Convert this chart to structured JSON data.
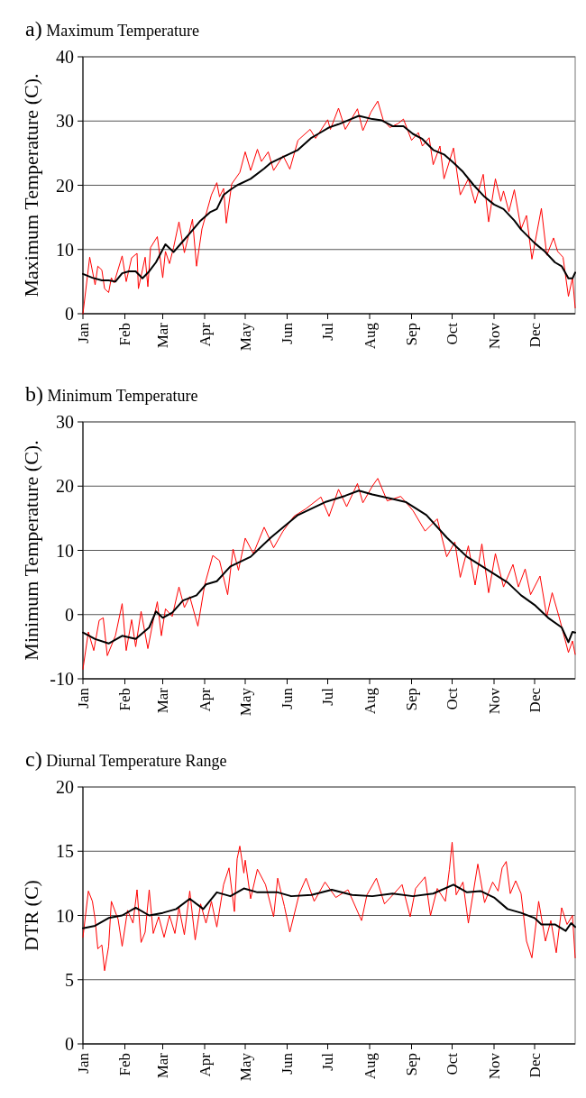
{
  "chart_data": [
    {
      "type": "line",
      "title": "a) Maximum Temperature",
      "ylabel": "Maximum Temperature (C).",
      "xlim": [
        "--01-01",
        "--12-31"
      ],
      "ylim": [
        0,
        40
      ],
      "yticks": [
        0,
        10,
        20,
        30,
        40
      ],
      "grid": "y",
      "marker": "none",
      "line_style": "solid",
      "xticks": [
        {
          "value": "--01-01",
          "label": "Jan"
        },
        {
          "value": "--02-01",
          "label": "Feb"
        },
        {
          "value": "--03-01",
          "label": "Mar"
        },
        {
          "value": "--04-01",
          "label": "Apr"
        },
        {
          "value": "--05-01",
          "label": "May"
        },
        {
          "value": "--06-01",
          "label": "Jun"
        },
        {
          "value": "--07-01",
          "label": "Jul"
        },
        {
          "value": "--08-01",
          "label": "Aug"
        },
        {
          "value": "--09-01",
          "label": "Sep"
        },
        {
          "value": "--10-01",
          "label": "Oct"
        },
        {
          "value": "--11-01",
          "label": "Nov"
        },
        {
          "value": "--12-01",
          "label": "Dec"
        }
      ],
      "series": [
        {
          "color": "#ff0000",
          "x": [
            "--01-01",
            "--01-06",
            "--01-10",
            "--01-12",
            "--01-15",
            "--01-17",
            "--01-20",
            "--01-22",
            "--01-24",
            "--01-30",
            "--02-02",
            "--02-06",
            "--02-10",
            "--02-11",
            "--02-16",
            "--02-18",
            "--02-20",
            "--02-25",
            "--03-01",
            "--03-03",
            "--03-06",
            "--03-09",
            "--03-13",
            "--03-17",
            "--03-23",
            "--03-26",
            "--03-30",
            "--04-06",
            "--04-10",
            "--04-12",
            "--04-15",
            "--04-17",
            "--04-21",
            "--04-27",
            "--05-01",
            "--05-05",
            "--05-10",
            "--05-13",
            "--05-18",
            "--05-22",
            "--05-29",
            "--06-03",
            "--06-09",
            "--06-18",
            "--06-22",
            "--07-01",
            "--07-03",
            "--07-09",
            "--07-14",
            "--07-23",
            "--07-27",
            "--08-02",
            "--08-07",
            "--08-11",
            "--08-16",
            "--08-22",
            "--08-26",
            "--09-01",
            "--09-06",
            "--09-09",
            "--09-14",
            "--09-17",
            "--09-22",
            "--09-25",
            "--10-02",
            "--10-07",
            "--10-13",
            "--10-18",
            "--10-24",
            "--10-28",
            "--11-02",
            "--11-06",
            "--11-08",
            "--11-12",
            "--11-16",
            "--11-21",
            "--11-25",
            "--11-29",
            "--12-06",
            "--12-10",
            "--12-15",
            "--12-18",
            "--12-22",
            "--12-26",
            "--12-29",
            "--12-31"
          ],
          "values": [
            0,
            8.8,
            4.5,
            7.4,
            6.8,
            3.9,
            3.3,
            5.6,
            4.8,
            9,
            5,
            8.7,
            9.4,
            3.9,
            8.8,
            4.2,
            10.3,
            12,
            5.6,
            9.7,
            7.8,
            10.3,
            14.3,
            9.5,
            14.7,
            7.4,
            13.2,
            18.5,
            20.4,
            18.2,
            19.5,
            14.1,
            20.2,
            22,
            25.2,
            22.3,
            25.6,
            23.7,
            25.2,
            22.3,
            24.6,
            22.5,
            27,
            28.7,
            27.3,
            30.2,
            28.7,
            32,
            28.7,
            31.9,
            28.5,
            31.4,
            33.1,
            30.2,
            29,
            29.6,
            30.3,
            27,
            28.2,
            26.1,
            27.4,
            23.2,
            26.1,
            21,
            25.8,
            18.5,
            21,
            17.2,
            21.7,
            14.3,
            21,
            17.5,
            19.1,
            15.9,
            19.3,
            13.2,
            15.3,
            8.5,
            16.4,
            9.1,
            11.8,
            9.7,
            8.8,
            2.7,
            5.6,
            0.9
          ]
        },
        {
          "color": "#000000",
          "x": [
            "--01-01",
            "--01-08",
            "--01-15",
            "--01-20",
            "--01-25",
            "--01-30",
            "--02-04",
            "--02-09",
            "--02-14",
            "--02-19",
            "--02-24",
            "--03-03",
            "--03-09",
            "--03-16",
            "--03-21",
            "--03-29",
            "--04-05",
            "--04-10",
            "--04-15",
            "--04-20",
            "--04-25",
            "--05-05",
            "--05-15",
            "--05-20",
            "--05-30",
            "--06-09",
            "--06-19",
            "--06-24",
            "--07-02",
            "--07-09",
            "--07-17",
            "--07-24",
            "--08-03",
            "--08-10",
            "--08-18",
            "--08-26",
            "--09-02",
            "--09-09",
            "--09-17",
            "--09-25",
            "--10-02",
            "--10-09",
            "--10-17",
            "--10-25",
            "--11-01",
            "--11-08",
            "--11-16",
            "--11-21",
            "--12-01",
            "--12-08",
            "--12-16",
            "--12-21",
            "--12-26",
            "--12-29",
            "--12-31"
          ],
          "values": [
            6.2,
            5.6,
            5.2,
            5.2,
            5,
            6.3,
            6.6,
            6.6,
            5.5,
            6.6,
            8,
            10.8,
            9.6,
            11.3,
            12.5,
            14.5,
            15.8,
            16.3,
            18.5,
            19.3,
            20,
            21,
            22.6,
            23.5,
            24.5,
            25.5,
            27.4,
            28,
            29,
            29.5,
            30.2,
            30.8,
            30.3,
            30.1,
            29.2,
            29.2,
            28,
            27.2,
            25.5,
            24.8,
            23.5,
            22.1,
            20,
            18.2,
            17,
            16.3,
            14.5,
            13.1,
            11,
            9.8,
            8,
            7.4,
            5.5,
            5.5,
            6.4
          ]
        }
      ]
    },
    {
      "type": "line",
      "title": "b) Minimum Temperature",
      "ylabel": "Minimum Temperature (C).",
      "xlim": [
        "--01-01",
        "--12-31"
      ],
      "ylim": [
        -10,
        30
      ],
      "yticks": [
        -10,
        0,
        10,
        20,
        30
      ],
      "grid": "y",
      "marker": "none",
      "line_style": "solid",
      "xticks": [
        {
          "value": "--01-01",
          "label": "Jan"
        },
        {
          "value": "--02-01",
          "label": "Feb"
        },
        {
          "value": "--03-01",
          "label": "Mar"
        },
        {
          "value": "--04-01",
          "label": "Apr"
        },
        {
          "value": "--05-01",
          "label": "May"
        },
        {
          "value": "--06-01",
          "label": "Jun"
        },
        {
          "value": "--07-01",
          "label": "Jul"
        },
        {
          "value": "--08-01",
          "label": "Aug"
        },
        {
          "value": "--09-01",
          "label": "Sep"
        },
        {
          "value": "--10-01",
          "label": "Oct"
        },
        {
          "value": "--11-01",
          "label": "Nov"
        },
        {
          "value": "--12-01",
          "label": "Dec"
        }
      ],
      "series": [
        {
          "color": "#ff0000",
          "x": [
            "--01-01",
            "--01-05",
            "--01-09",
            "--01-13",
            "--01-16",
            "--01-19",
            "--01-25",
            "--01-30",
            "--02-02",
            "--02-06",
            "--02-09",
            "--02-13",
            "--02-18",
            "--02-22",
            "--02-25",
            "--02-28",
            "--03-03",
            "--03-08",
            "--03-13",
            "--03-17",
            "--03-21",
            "--03-27",
            "--04-01",
            "--04-07",
            "--04-12",
            "--04-18",
            "--04-22",
            "--04-26",
            "--05-01",
            "--05-07",
            "--05-15",
            "--05-22",
            "--05-29",
            "--06-06",
            "--06-15",
            "--06-26",
            "--07-02",
            "--07-09",
            "--07-15",
            "--07-23",
            "--07-27",
            "--08-03",
            "--08-07",
            "--08-14",
            "--08-24",
            "--09-02",
            "--09-11",
            "--09-20",
            "--09-27",
            "--10-03",
            "--10-07",
            "--10-13",
            "--10-18",
            "--10-23",
            "--10-28",
            "--11-02",
            "--11-08",
            "--11-15",
            "--11-19",
            "--11-24",
            "--11-28",
            "--12-05",
            "--12-10",
            "--12-14",
            "--12-19",
            "--12-26",
            "--12-29",
            "--12-31"
          ],
          "values": [
            -8.5,
            -2.7,
            -5.6,
            -0.9,
            -0.5,
            -6.4,
            -3.3,
            1.7,
            -5.6,
            -0.8,
            -5,
            0.5,
            -5.3,
            -0.9,
            2,
            -3.3,
            0.9,
            -0.3,
            4.3,
            1.1,
            2.8,
            -1.8,
            4.6,
            9.2,
            8.4,
            3.1,
            10.2,
            6.9,
            11.9,
            9.5,
            13.6,
            10.4,
            13,
            15.3,
            16.5,
            18.3,
            15.3,
            19.5,
            16.8,
            20.4,
            17.4,
            20,
            21.2,
            17.7,
            18.4,
            16.2,
            13,
            14.9,
            9,
            11.3,
            5.8,
            10.7,
            4.6,
            11,
            3.4,
            9.5,
            4.3,
            7.8,
            4.3,
            7.1,
            3.1,
            6,
            -0.3,
            3.4,
            -0.3,
            -5.9,
            -4.1,
            -6.2
          ]
        },
        {
          "color": "#000000",
          "x": [
            "--01-01",
            "--01-10",
            "--01-20",
            "--01-30",
            "--02-09",
            "--02-19",
            "--02-24",
            "--03-01",
            "--03-08",
            "--03-16",
            "--03-26",
            "--04-02",
            "--04-10",
            "--04-20",
            "--05-05",
            "--05-20",
            "--06-09",
            "--06-29",
            "--07-14",
            "--07-24",
            "--08-03",
            "--08-18",
            "--08-28",
            "--09-12",
            "--09-27",
            "--10-12",
            "--10-27",
            "--11-11",
            "--11-21",
            "--12-01",
            "--12-11",
            "--12-21",
            "--12-26",
            "--12-29",
            "--12-31"
          ],
          "values": [
            -2.8,
            -3.8,
            -4.5,
            -3.3,
            -3.8,
            -2,
            0.5,
            -0.5,
            0.3,
            2.2,
            3,
            4.7,
            5.2,
            7.5,
            9,
            12,
            15.5,
            17.5,
            18.5,
            19.3,
            18.7,
            18,
            17.5,
            15.5,
            12,
            9,
            7,
            5,
            3,
            1.5,
            -0.5,
            -2,
            -4.3,
            -2.7,
            -2.8
          ]
        }
      ]
    },
    {
      "type": "line",
      "title": "c) Diurnal Temperature Range",
      "ylabel": "DTR (C)",
      "xlim": [
        "--01-01",
        "--12-31"
      ],
      "ylim": [
        0,
        20
      ],
      "yticks": [
        0,
        5,
        10,
        15,
        20
      ],
      "grid": "y",
      "marker": "none",
      "line_style": "solid",
      "xticks": [
        {
          "value": "--01-01",
          "label": "Jan"
        },
        {
          "value": "--02-01",
          "label": "Feb"
        },
        {
          "value": "--03-01",
          "label": "Mar"
        },
        {
          "value": "--04-01",
          "label": "Apr"
        },
        {
          "value": "--05-01",
          "label": "May"
        },
        {
          "value": "--06-01",
          "label": "Jun"
        },
        {
          "value": "--07-01",
          "label": "Jul"
        },
        {
          "value": "--08-01",
          "label": "Aug"
        },
        {
          "value": "--09-01",
          "label": "Sep"
        },
        {
          "value": "--10-01",
          "label": "Oct"
        },
        {
          "value": "--11-01",
          "label": "Nov"
        },
        {
          "value": "--12-01",
          "label": "Dec"
        }
      ],
      "series": [
        {
          "color": "#ff0000",
          "x": [
            "--01-01",
            "--01-05",
            "--01-08",
            "--01-10",
            "--01-12",
            "--01-15",
            "--01-17",
            "--01-20",
            "--01-22",
            "--01-27",
            "--01-30",
            "--02-03",
            "--02-07",
            "--02-10",
            "--02-13",
            "--02-16",
            "--02-19",
            "--02-22",
            "--02-26",
            "--03-02",
            "--03-06",
            "--03-10",
            "--03-13",
            "--03-17",
            "--03-21",
            "--03-25",
            "--03-29",
            "--04-02",
            "--04-06",
            "--04-10",
            "--04-15",
            "--04-19",
            "--04-23",
            "--04-25",
            "--04-27",
            "--04-30",
            "--05-01",
            "--05-05",
            "--05-10",
            "--05-16",
            "--05-22",
            "--05-25",
            "--05-30",
            "--06-03",
            "--06-10",
            "--06-15",
            "--06-21",
            "--06-29",
            "--07-07",
            "--07-16",
            "--07-26",
            "--07-30",
            "--08-06",
            "--08-12",
            "--08-19",
            "--08-25",
            "--08-31",
            "--09-04",
            "--09-11",
            "--09-15",
            "--09-20",
            "--09-26",
            "--09-29",
            "--10-01",
            "--10-04",
            "--10-09",
            "--10-13",
            "--10-20",
            "--10-25",
            "--10-31",
            "--11-04",
            "--11-07",
            "--11-10",
            "--11-13",
            "--11-17",
            "--11-21",
            "--11-25",
            "--11-29",
            "--12-04",
            "--12-09",
            "--12-13",
            "--12-17",
            "--12-21",
            "--12-25",
            "--12-29",
            "--12-31"
          ],
          "values": [
            8.3,
            11.9,
            11.1,
            9.7,
            7.4,
            7.7,
            5.7,
            7.6,
            11.1,
            9.7,
            7.6,
            10.4,
            9.4,
            12,
            7.9,
            8.7,
            12,
            8.6,
            9.9,
            8.3,
            10,
            8.6,
            10.6,
            8.5,
            11.9,
            8.1,
            10.9,
            9.4,
            11.1,
            9.1,
            12.4,
            13.7,
            10.3,
            14.4,
            15.4,
            13.3,
            14.3,
            11.3,
            13.6,
            12.4,
            9.9,
            12.9,
            10.7,
            8.7,
            11.7,
            12.9,
            11.1,
            12.6,
            11.4,
            12,
            9.6,
            11.6,
            12.9,
            10.9,
            11.7,
            12.4,
            9.9,
            12.1,
            13,
            10,
            12.1,
            11.1,
            13.6,
            15.7,
            11.6,
            12.6,
            9.4,
            14,
            11,
            12.6,
            11.9,
            13.7,
            14.2,
            11.7,
            12.7,
            11.7,
            8,
            6.7,
            11.1,
            8,
            9.6,
            7.1,
            10.6,
            9.3,
            10,
            6.7
          ]
        },
        {
          "color": "#000000",
          "x": [
            "--01-01",
            "--01-10",
            "--01-20",
            "--01-30",
            "--02-09",
            "--02-19",
            "--03-01",
            "--03-11",
            "--03-21",
            "--03-31",
            "--04-10",
            "--04-20",
            "--04-30",
            "--05-10",
            "--05-25",
            "--06-04",
            "--06-19",
            "--07-04",
            "--07-19",
            "--08-03",
            "--08-18",
            "--09-02",
            "--09-17",
            "--10-02",
            "--10-12",
            "--10-22",
            "--11-01",
            "--11-11",
            "--11-21",
            "--12-01",
            "--12-06",
            "--12-16",
            "--12-24",
            "--12-28",
            "--12-31"
          ],
          "values": [
            9,
            9.2,
            9.8,
            10,
            10.6,
            10,
            10.2,
            10.5,
            11.3,
            10.5,
            11.8,
            11.5,
            12.1,
            11.8,
            11.8,
            11.5,
            11.6,
            12,
            11.6,
            11.5,
            11.7,
            11.5,
            11.7,
            12.4,
            11.8,
            11.9,
            11.4,
            10.5,
            10.2,
            9.8,
            9.3,
            9.3,
            8.8,
            9.4,
            9.1
          ]
        }
      ]
    }
  ]
}
